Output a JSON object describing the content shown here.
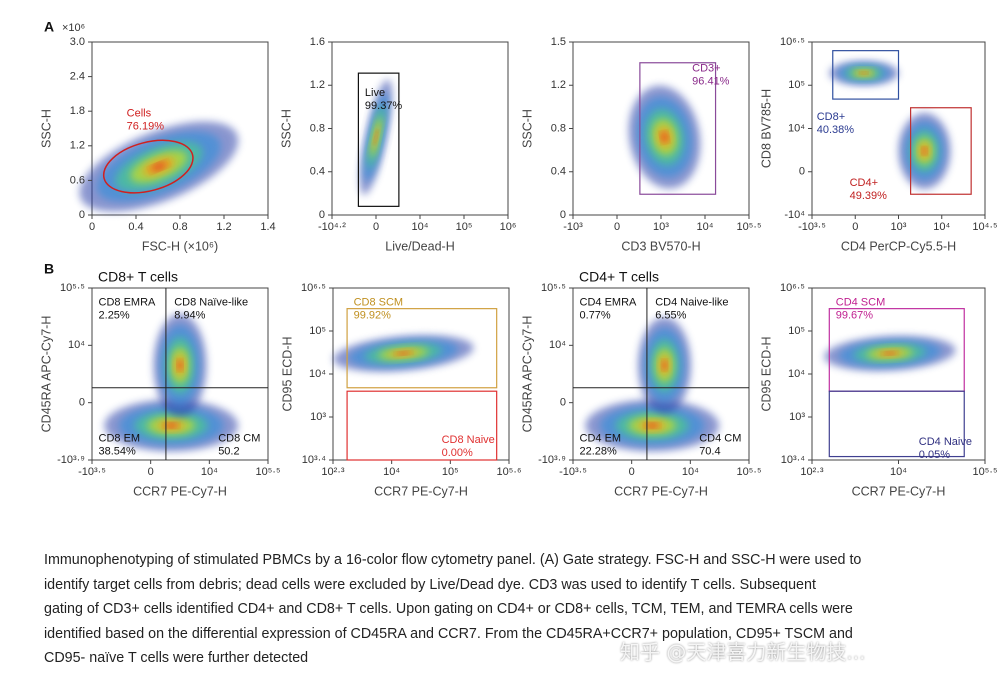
{
  "panel_labels": {
    "a": "A",
    "b": "B"
  },
  "plots": [
    {
      "x_label": "FSC-H (×10⁶)",
      "y_label": "SSC-H",
      "y_unit": "×10⁶",
      "x_ticks": [
        "0",
        "0.4",
        "0.8",
        "1.2",
        "1.4"
      ],
      "y_ticks": [
        "0",
        "0.6",
        "1.2",
        "1.8",
        "2.4",
        "3.0"
      ],
      "gates": [
        {
          "name": "Cells",
          "value": "76.19%"
        }
      ]
    },
    {
      "x_label": "Live/Dead-H",
      "y_label": "SSC-H",
      "x_ticks": [
        "-10⁴·²",
        "0",
        "10⁴",
        "10⁵",
        "10⁶"
      ],
      "y_ticks": [
        "0",
        "0.4",
        "0.8",
        "1.2",
        "1.6"
      ],
      "gates": [
        {
          "name": "Live",
          "value": "99.37%"
        }
      ]
    },
    {
      "x_label": "CD3 BV570-H",
      "y_label": "SSC-H",
      "x_ticks": [
        "-10³",
        "0",
        "10³",
        "10⁴",
        "10⁵·⁵"
      ],
      "y_ticks": [
        "0",
        "0.4",
        "0.8",
        "1.2",
        "1.5"
      ],
      "gates": [
        {
          "name": "CD3+",
          "value": "96.41%"
        }
      ]
    },
    {
      "x_label": "CD4 PerCP-Cy5.5-H",
      "y_label": "CD8 BV785-H",
      "x_ticks": [
        "-10³·⁵",
        "0",
        "10³",
        "10⁴",
        "10⁴·⁵"
      ],
      "y_ticks": [
        "-10⁴",
        "0",
        "10⁴",
        "10⁵",
        "10⁶·⁵"
      ],
      "gates": [
        {
          "name": "CD8+",
          "value": "40.38%"
        },
        {
          "name": "CD4+",
          "value": "49.39%"
        }
      ]
    },
    {
      "title": "CD8+ T cells",
      "x_label": "CCR7 PE-Cy7-H",
      "y_label": "CD45RA APC-Cy7-H",
      "x_ticks": [
        "-10³·⁵",
        "0",
        "10⁴",
        "10⁵·⁵"
      ],
      "y_ticks": [
        "-10³·⁹",
        "0",
        "10⁴",
        "10⁵·⁵"
      ],
      "gates": [
        {
          "name": "CD8 EMRA",
          "value": "2.25%"
        },
        {
          "name": "CD8 Naïve-like",
          "value": "8.94%"
        },
        {
          "name": "CD8 EM",
          "value": "38.54%"
        },
        {
          "name": "CD8 CM",
          "value": "50.2"
        }
      ]
    },
    {
      "x_label": "CCR7 PE-Cy7-H",
      "y_label": "CD95 ECD-H",
      "x_ticks": [
        "10²·³",
        "10⁴",
        "10⁵",
        "10⁵·⁶"
      ],
      "y_ticks": [
        "10³·⁴",
        "10³",
        "10⁴",
        "10⁵",
        "10⁶·⁵"
      ],
      "gates": [
        {
          "name": "CD8 SCM",
          "value": "99.92%"
        },
        {
          "name": "CD8 Naive",
          "value": "0.00%"
        }
      ]
    },
    {
      "title": "CD4+ T cells",
      "x_label": "CCR7 PE-Cy7-H",
      "y_label": "CD45RA APC-Cy7-H",
      "x_ticks": [
        "-10³·⁵",
        "0",
        "10⁴",
        "10⁵·⁵"
      ],
      "y_ticks": [
        "-10³·⁹",
        "0",
        "10⁴",
        "10⁵·⁵"
      ],
      "gates": [
        {
          "name": "CD4 EMRA",
          "value": "0.77%"
        },
        {
          "name": "CD4 Naive-like",
          "value": "6.55%"
        },
        {
          "name": "CD4 EM",
          "value": "22.28%"
        },
        {
          "name": "CD4 CM",
          "value": "70.4"
        }
      ]
    },
    {
      "x_label": "CCR7 PE-Cy7-H",
      "y_label": "CD95 ECD-H",
      "x_ticks": [
        "10²·³",
        "10⁴",
        "10⁵·⁵"
      ],
      "y_ticks": [
        "10³·⁴",
        "10³",
        "10⁴",
        "10⁵",
        "10⁶·⁵"
      ],
      "gates": [
        {
          "name": "CD4 SCM",
          "value": "99.67%"
        },
        {
          "name": "CD4 Naive",
          "value": "0.05%"
        }
      ]
    }
  ],
  "caption": [
    "Immunophenotyping of stimulated PBMCs by a 16-color flow cytometry panel. (A) Gate strategy. FSC-H and SSC-H were used to",
    "identify target cells from debris; dead cells were excluded by Live/Dead dye. CD3 was used to identify T cells. Subsequent",
    "gating of CD3+ cells identified CD4+ and CD8+ T cells. Upon gating on CD4+ or CD8+ cells, TCM, TEM, and TEMRA cells were",
    "identified based on the differential expression of CD45RA and CCR7. From the CD45RA+CCR7+ population, CD95+ TSCM and",
    "CD95- naïve T cells were further detected"
  ],
  "watermark": "知乎 @天津喜力新生物技..."
}
